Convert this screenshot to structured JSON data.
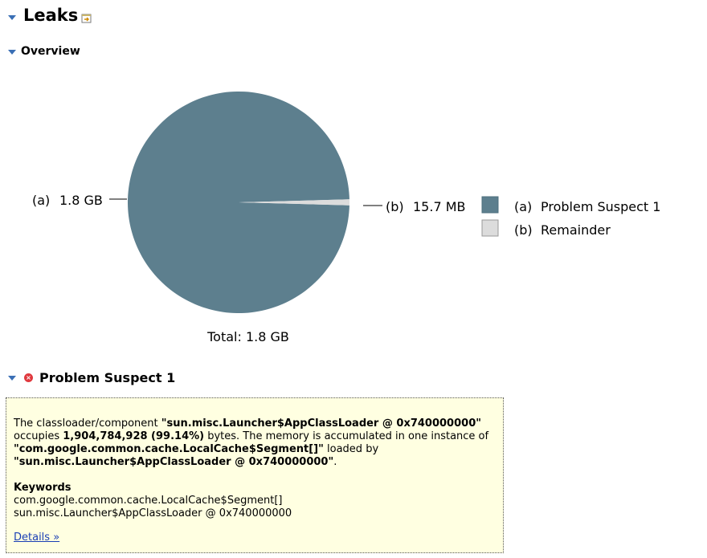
{
  "header": {
    "title": "Leaks",
    "icon": "export-report-icon"
  },
  "overview": {
    "title": "Overview"
  },
  "chart_data": {
    "type": "pie",
    "slices": [
      {
        "label": "(a)",
        "legend": "Problem Suspect 1",
        "value_text": "1.8 GB",
        "value": 1.8,
        "color": "#5d7f8e"
      },
      {
        "label": "(b)",
        "legend": "Remainder",
        "value_text": "15.7 MB",
        "value": 0.0157,
        "color": "#dcdcdc"
      }
    ],
    "total_text": "Total: 1.8 GB",
    "units": "GB",
    "legend_position": "right"
  },
  "suspect": {
    "title": "Problem Suspect 1",
    "icon": "error-icon",
    "desc_1": "The classloader/component ",
    "desc_2": "\"sun.misc.Launcher$AppClassLoader @ 0x740000000\"",
    "desc_3": " occupies ",
    "desc_4": "1,904,784,928 (99.14%)",
    "desc_5": " bytes. The memory is accumulated in one instance of ",
    "desc_6": "\"com.google.common.cache.LocalCache$Segment[]\"",
    "desc_7": " loaded by ",
    "desc_8": "\"sun.misc.Launcher$AppClassLoader @ 0x740000000\"",
    "desc_9": ".",
    "keywords_title": "Keywords",
    "keywords": [
      "com.google.common.cache.LocalCache$Segment[]",
      "sun.misc.Launcher$AppClassLoader @ 0x740000000"
    ],
    "details_link": "Details »"
  }
}
